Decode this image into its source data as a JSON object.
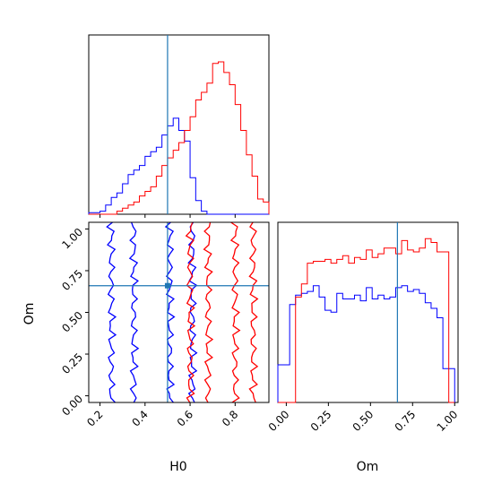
{
  "chart_data": [
    {
      "type": "histogram",
      "panel": "H0 marginal",
      "xlim": [
        0.15,
        0.95
      ],
      "x_bins": [
        0.15,
        0.175,
        0.2,
        0.225,
        0.25,
        0.275,
        0.3,
        0.325,
        0.35,
        0.375,
        0.4,
        0.425,
        0.45,
        0.475,
        0.5,
        0.525,
        0.55,
        0.575,
        0.6,
        0.625,
        0.65,
        0.675,
        0.7,
        0.725,
        0.75,
        0.775,
        0.8,
        0.825,
        0.85,
        0.875,
        0.9,
        0.925,
        0.95
      ],
      "truth": 0.5,
      "series": [
        {
          "color": "#0000ff",
          "values": [
            0.01,
            0.01,
            0.02,
            0.06,
            0.11,
            0.14,
            0.2,
            0.26,
            0.29,
            0.32,
            0.38,
            0.41,
            0.44,
            0.52,
            0.58,
            0.63,
            0.55,
            0.48,
            0.24,
            0.09,
            0.02,
            0,
            0,
            0,
            0,
            0,
            0,
            0,
            0,
            0,
            0,
            0
          ]
        },
        {
          "color": "#ff0000",
          "values": [
            0,
            0,
            0,
            0,
            0,
            0.02,
            0.04,
            0.06,
            0.08,
            0.12,
            0.15,
            0.18,
            0.25,
            0.32,
            0.37,
            0.42,
            0.47,
            0.55,
            0.64,
            0.75,
            0.8,
            0.86,
            0.99,
            1.0,
            0.93,
            0.85,
            0.72,
            0.55,
            0.39,
            0.25,
            0.1,
            0.08
          ]
        }
      ]
    },
    {
      "type": "contour",
      "panel": "H0 vs Om",
      "xlabel": "H0",
      "ylabel": "Om",
      "xlim": [
        0.15,
        0.95
      ],
      "ylim": [
        -0.04,
        1.04
      ],
      "x_ticks": [
        "0.2",
        "0.4",
        "0.6",
        "0.8"
      ],
      "y_ticks": [
        "0.00",
        "0.25",
        "0.50",
        "0.75",
        "1.00"
      ],
      "truth": {
        "H0": 0.5,
        "Om": 0.66
      },
      "series": [
        {
          "color": "#0000ff",
          "center_h0": 0.43,
          "levels": [
            {
              "width": 0.08
            },
            {
              "width": 0.18
            }
          ]
        },
        {
          "color": "#ff0000",
          "center_h0": 0.74,
          "levels": [
            {
              "width": 0.06
            },
            {
              "width": 0.14
            }
          ]
        }
      ]
    },
    {
      "type": "histogram",
      "panel": "Om marginal",
      "xlabel": "Om",
      "xlim": [
        -0.05,
        1.02
      ],
      "x_ticks": [
        "0.00",
        "0.25",
        "0.50",
        "0.75",
        "1.00"
      ],
      "truth": 0.66,
      "series": [
        {
          "color": "#0000ff",
          "values": [
            0.2,
            0.2,
            0.52,
            0.57,
            0.58,
            0.59,
            0.62,
            0.56,
            0.49,
            0.48,
            0.58,
            0.55,
            0.55,
            0.57,
            0.54,
            0.61,
            0.55,
            0.57,
            0.55,
            0.56,
            0.61,
            0.62,
            0.59,
            0.6,
            0.58,
            0.53,
            0.5,
            0.45,
            0.18,
            0.18
          ]
        },
        {
          "color": "#ff0000",
          "values": [
            0,
            0,
            0,
            0.56,
            0.63,
            0.74,
            0.75,
            0.75,
            0.76,
            0.74,
            0.76,
            0.78,
            0.74,
            0.77,
            0.76,
            0.81,
            0.77,
            0.79,
            0.82,
            0.82,
            0.79,
            0.86,
            0.81,
            0.8,
            0.82,
            0.87,
            0.85,
            0.8,
            0.8,
            0
          ]
        }
      ]
    }
  ]
}
